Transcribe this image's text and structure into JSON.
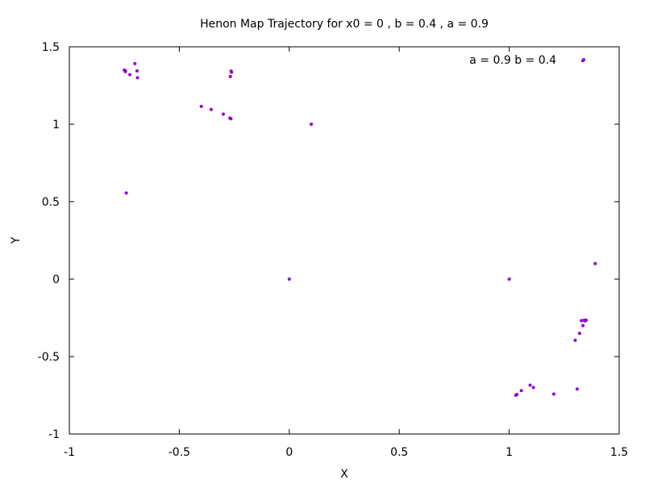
{
  "chart_data": {
    "type": "scatter",
    "title": "Henon Map Trajectory for x0 = 0 , b = 0.4 , a = 0.9",
    "xlabel": "X",
    "ylabel": "Y",
    "xlim": [
      -1,
      1.5
    ],
    "ylim": [
      -1,
      1.5
    ],
    "xticks": [
      -1,
      -0.5,
      0,
      0.5,
      1,
      1.5
    ],
    "xtick_labels": [
      "-1",
      "-0.5",
      "0",
      "0.5",
      "1",
      "1.5"
    ],
    "yticks": [
      -1,
      -0.5,
      0,
      0.5,
      1,
      1.5
    ],
    "ytick_labels": [
      "-1",
      "-0.5",
      "0",
      "0.5",
      "1",
      "1.5"
    ],
    "grid": false,
    "legend_position": "top-right",
    "series": [
      {
        "name": "a = 0.9 b = 0.4",
        "color": "#9400d3",
        "points": [
          [
            0,
            0
          ],
          [
            1,
            0
          ],
          [
            0.1,
            1
          ],
          [
            1.391,
            0.1
          ],
          [
            -0.741,
            0.556
          ],
          [
            1.3344,
            1.41
          ],
          [
            -0.7019,
            1.391
          ],
          [
            1.2026,
            -0.7419
          ],
          [
            -0.6922,
            1.3442
          ],
          [
            1.3086,
            -0.7097
          ],
          [
            -0.2678,
            1.3078
          ],
          [
            1.3282,
            -0.2684
          ],
          [
            -0.2629,
            1.3354
          ],
          [
            1.3445,
            -0.2656
          ],
          [
            -0.2646,
            1.3428
          ],
          [
            1.3416,
            -0.2648
          ],
          [
            -0.75,
            1.35
          ],
          [
            -0.745,
            1.345
          ],
          [
            -0.725,
            1.32
          ],
          [
            -0.69,
            1.3
          ],
          [
            -0.745,
            1.34
          ],
          [
            -0.4,
            1.115
          ],
          [
            -0.355,
            1.095
          ],
          [
            -0.3,
            1.065
          ],
          [
            -0.27,
            1.04
          ],
          [
            -0.265,
            1.035
          ],
          [
            1.03,
            -0.75
          ],
          [
            1.035,
            -0.745
          ],
          [
            1.055,
            -0.72
          ],
          [
            1.095,
            -0.685
          ],
          [
            1.11,
            -0.7
          ],
          [
            1.3,
            -0.395
          ],
          [
            1.32,
            -0.35
          ],
          [
            1.335,
            -0.3
          ],
          [
            1.345,
            -0.27
          ],
          [
            1.35,
            -0.265
          ]
        ]
      }
    ]
  }
}
